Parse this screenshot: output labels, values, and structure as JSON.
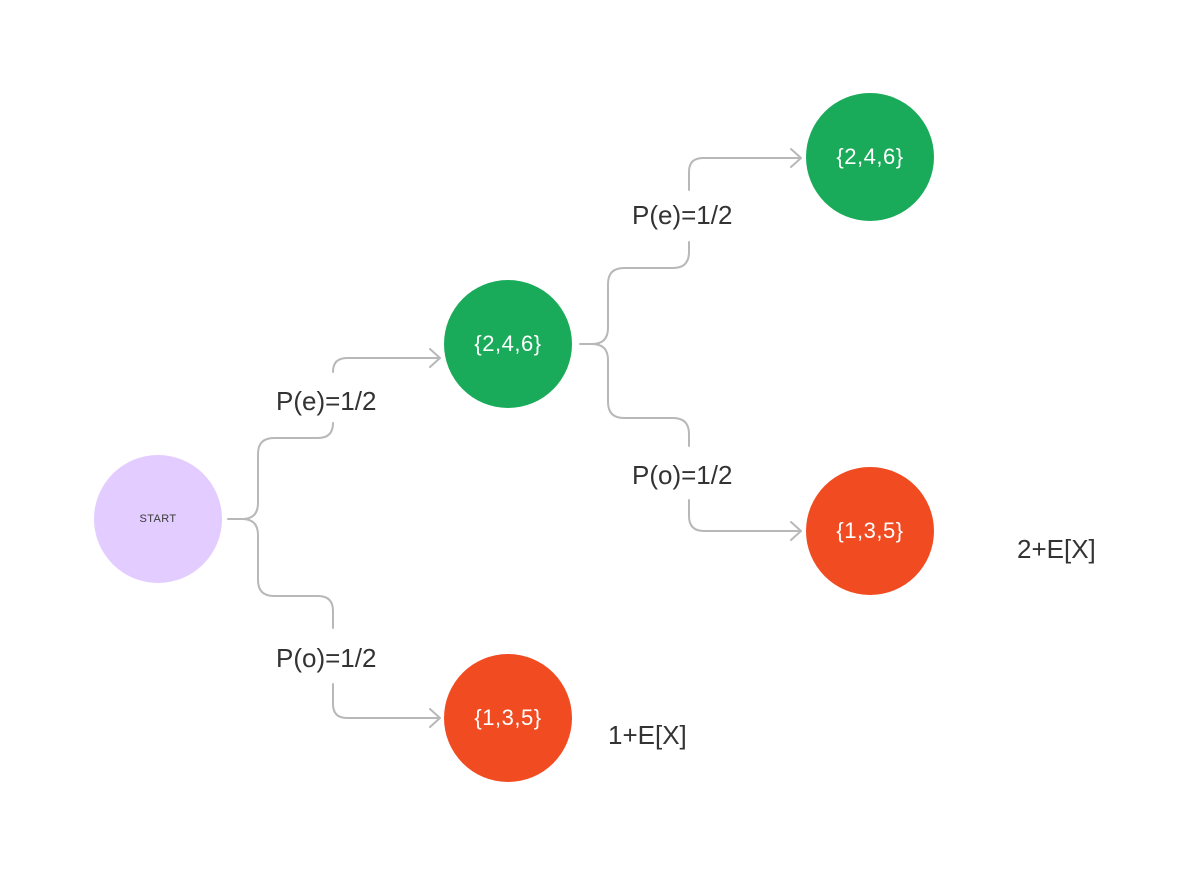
{
  "colors": {
    "start": "#e3ccff",
    "even": "#1aab5a",
    "odd": "#f14b22",
    "connector": "#b8b8b8",
    "text": "#333333"
  },
  "nodes": {
    "start": {
      "label": "START"
    },
    "even_1": {
      "label": "{2,4,6}"
    },
    "odd_1": {
      "label": "{1,3,5}"
    },
    "even_2": {
      "label": "{2,4,6}"
    },
    "odd_2": {
      "label": "{1,3,5}"
    }
  },
  "edges": {
    "start_even": {
      "label": "P(e)=1/2"
    },
    "start_odd": {
      "label": "P(o)=1/2"
    },
    "even_even": {
      "label": "P(e)=1/2"
    },
    "even_odd": {
      "label": "P(o)=1/2"
    }
  },
  "notes": {
    "first_odd": "1+E[X]",
    "second_odd": "2+E[X]"
  }
}
